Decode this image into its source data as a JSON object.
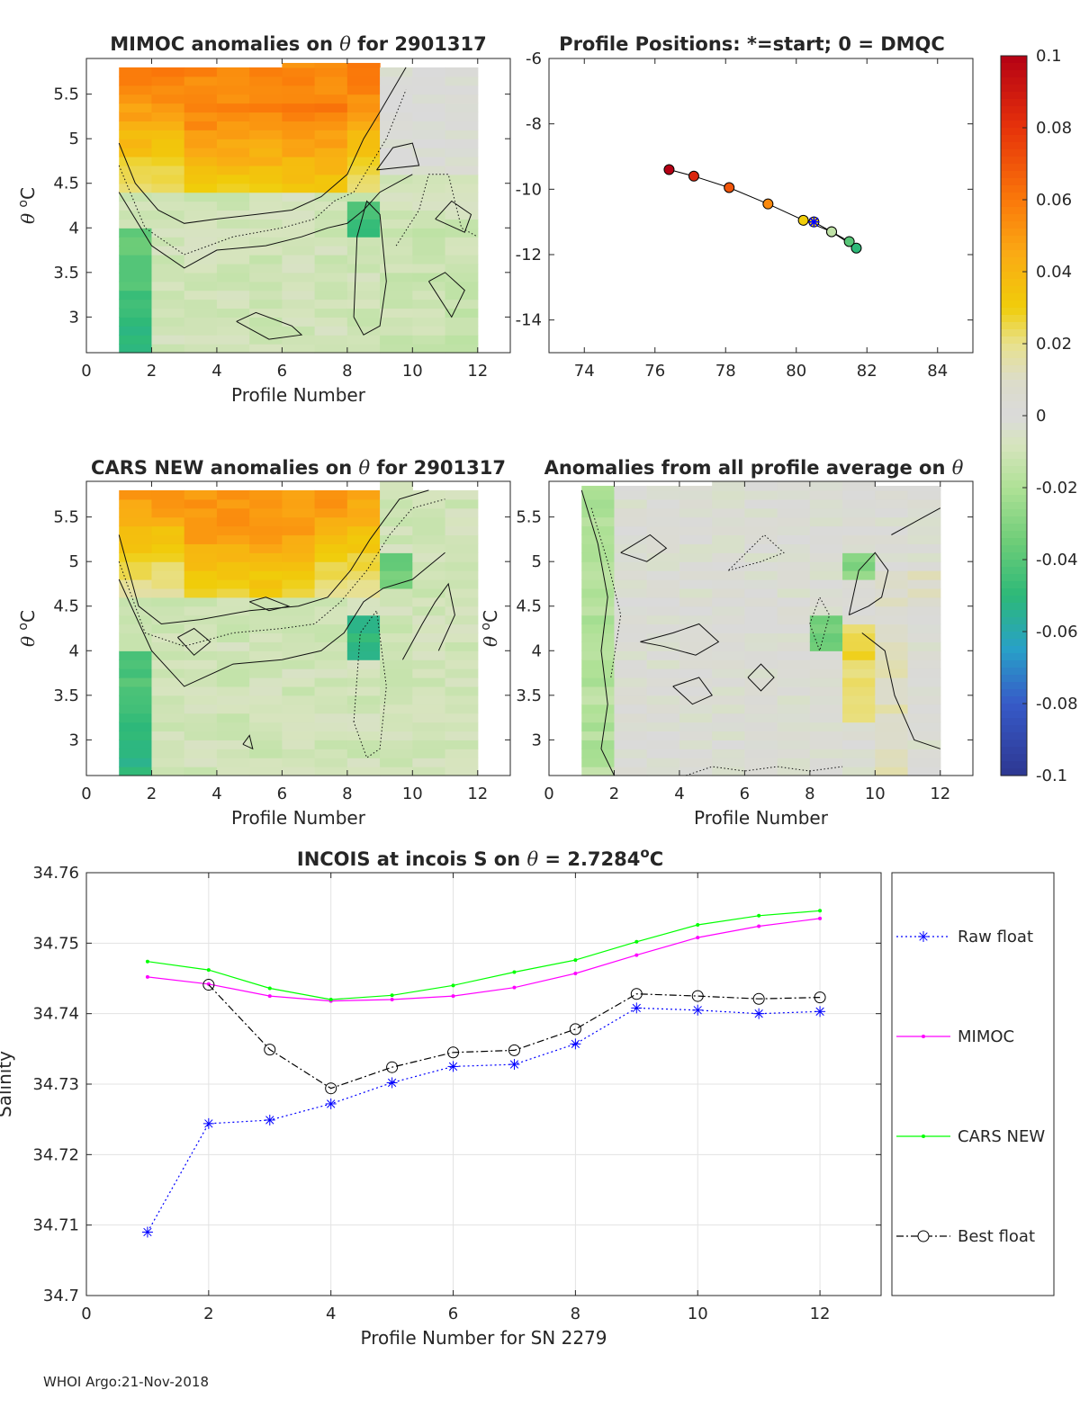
{
  "footer": "WHOI Argo:21-Nov-2018",
  "colorbar": {
    "ticks": [
      {
        "v": 0.1,
        "label": "0.1"
      },
      {
        "v": 0.08,
        "label": "0.08"
      },
      {
        "v": 0.06,
        "label": "0.06"
      },
      {
        "v": 0.04,
        "label": "0.04"
      },
      {
        "v": 0.02,
        "label": "0.02"
      },
      {
        "v": 0,
        "label": "0"
      },
      {
        "v": -0.02,
        "label": "-0.02"
      },
      {
        "v": -0.04,
        "label": "-0.04"
      },
      {
        "v": -0.06,
        "label": "-0.06"
      },
      {
        "v": -0.08,
        "label": "-0.08"
      },
      {
        "v": -0.1,
        "label": "-0.1"
      }
    ],
    "range": [
      -0.1,
      0.1
    ]
  },
  "chart_data": [
    {
      "id": "mimoc",
      "type": "heatmap",
      "title_pre": "MIMOC anomalies on ",
      "title_post": "  for 2901317",
      "xlabel": "Profile Number",
      "ylabel": "θ °C",
      "xlim": [
        0,
        13
      ],
      "ylim": [
        2.6,
        5.9
      ],
      "xticks": [
        0,
        2,
        4,
        6,
        8,
        10,
        12
      ],
      "yticks": [
        3,
        3.5,
        4,
        4.5,
        5,
        5.5
      ]
    },
    {
      "id": "positions",
      "type": "scatter",
      "title": "Profile Positions: *=start; 0 = DMQC",
      "xlim": [
        73,
        85
      ],
      "ylim": [
        -15,
        -6
      ],
      "xticks": [
        74,
        76,
        78,
        80,
        82,
        84
      ],
      "yticks": [
        -14,
        -12,
        -10,
        -8,
        -6
      ],
      "points": [
        {
          "lon": 80.5,
          "lat": -11.0,
          "c": 0.03
        },
        {
          "lon": 81.0,
          "lat": -11.3,
          "c": -0.01
        },
        {
          "lon": 81.5,
          "lat": -11.6,
          "c": -0.04
        },
        {
          "lon": 81.7,
          "lat": -11.8,
          "c": -0.05
        },
        {
          "lon": 81.0,
          "lat": -11.3,
          "c": -0.015
        },
        {
          "lon": 80.2,
          "lat": -10.95,
          "c": 0.03
        },
        {
          "lon": 79.2,
          "lat": -10.45,
          "c": 0.055
        },
        {
          "lon": 78.1,
          "lat": -9.95,
          "c": 0.07
        },
        {
          "lon": 77.1,
          "lat": -9.6,
          "c": 0.085
        },
        {
          "lon": 76.4,
          "lat": -9.4,
          "c": 0.1
        }
      ],
      "start": {
        "lon": 80.5,
        "lat": -11.0
      }
    },
    {
      "id": "cars",
      "type": "heatmap",
      "title_pre": "CARS NEW anomalies on ",
      "title_post": " for 2901317",
      "xlabel": "Profile Number",
      "ylabel": "θ °C",
      "xlim": [
        0,
        13
      ],
      "ylim": [
        2.6,
        5.9
      ],
      "xticks": [
        0,
        2,
        4,
        6,
        8,
        10,
        12
      ],
      "yticks": [
        3,
        3.5,
        4,
        4.5,
        5,
        5.5
      ]
    },
    {
      "id": "avg",
      "type": "heatmap",
      "title_pre": "Anomalies from all profile average on ",
      "title_post": "",
      "xlabel": "Profile Number",
      "ylabel": "θ °C",
      "xlim": [
        0,
        13
      ],
      "ylim": [
        2.6,
        5.9
      ],
      "xticks": [
        0,
        2,
        4,
        6,
        8,
        10,
        12
      ],
      "yticks": [
        3,
        3.5,
        4,
        4.5,
        5,
        5.5
      ]
    },
    {
      "id": "incois",
      "type": "line",
      "title_pre": "INCOIS at incois S on ",
      "title_post": " = 2.7284",
      "title_sup": "o",
      "title_end": "C",
      "xlabel": "Profile Number for SN 2279",
      "ylabel": "Salinity",
      "xlim": [
        0,
        13
      ],
      "ylim": [
        34.7,
        34.76
      ],
      "xticks": [
        0,
        2,
        4,
        6,
        8,
        10,
        12
      ],
      "yticks": [
        34.7,
        34.71,
        34.72,
        34.73,
        34.74,
        34.75,
        34.76
      ],
      "x": [
        1,
        2,
        3,
        4,
        5,
        6,
        7,
        8,
        9,
        10,
        11,
        12
      ],
      "series": [
        {
          "name": "Raw float",
          "color": "#0000ff",
          "dash": "2,3",
          "marker": "star",
          "values": [
            34.709,
            34.7244,
            34.7249,
            34.7272,
            34.7302,
            34.7325,
            34.7328,
            34.7357,
            34.7408,
            34.7405,
            34.74,
            34.7403
          ]
        },
        {
          "name": "MIMOC",
          "color": "#ff00ff",
          "dash": "",
          "marker": "dot",
          "values": [
            34.7452,
            34.7442,
            34.7425,
            34.7418,
            34.742,
            34.7425,
            34.7437,
            34.7457,
            34.7483,
            34.7508,
            34.7524,
            34.7535
          ]
        },
        {
          "name": "CARS NEW",
          "color": "#00ff00",
          "dash": "",
          "marker": "dot",
          "values": [
            34.7474,
            34.7462,
            34.7436,
            34.742,
            34.7426,
            34.744,
            34.7459,
            34.7476,
            34.7502,
            34.7526,
            34.7539,
            34.7546
          ]
        },
        {
          "name": "Best float",
          "color": "#000000",
          "dash": "8,3,2,3",
          "marker": "circle",
          "values": [
            null,
            34.7441,
            34.7349,
            34.7294,
            34.7324,
            34.7345,
            34.7348,
            34.7378,
            34.7428,
            34.7425,
            34.7421,
            34.7423
          ]
        }
      ]
    }
  ]
}
